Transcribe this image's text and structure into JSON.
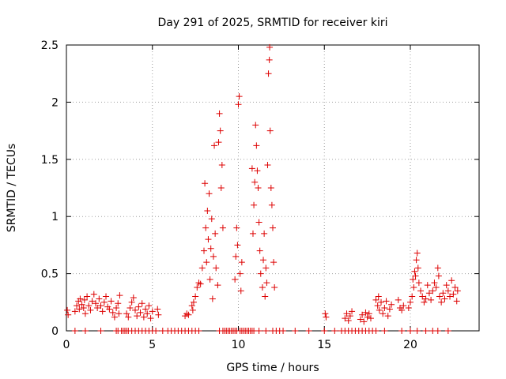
{
  "chart_data": {
    "type": "scatter",
    "title": "Day 291 of 2025, SRMTID for receiver kiri",
    "xlabel": "GPS time / hours",
    "ylabel": "SRMTID / TECUs",
    "xlim": [
      0,
      24
    ],
    "ylim": [
      0,
      2.5
    ],
    "xticks": [
      0,
      5,
      10,
      15,
      20
    ],
    "xtick_labels": [
      "0",
      "5",
      "10",
      "15",
      "20"
    ],
    "yticks": [
      0,
      0.5,
      1,
      1.5,
      2,
      2.5
    ],
    "ytick_labels": [
      "0",
      "0.5",
      "1",
      "1.5",
      "2",
      "2.5"
    ],
    "grid": true,
    "marker": "plus",
    "color": "#dd0000",
    "series": [
      {
        "name": "SRMTID",
        "points": [
          [
            0.05,
            0.18
          ],
          [
            0.1,
            0.14
          ],
          [
            0.5,
            0.17
          ],
          [
            0.6,
            0.22
          ],
          [
            0.7,
            0.26
          ],
          [
            0.75,
            0.19
          ],
          [
            0.8,
            0.28
          ],
          [
            0.9,
            0.23
          ],
          [
            1.0,
            0.2
          ],
          [
            1.05,
            0.27
          ],
          [
            1.1,
            0.15
          ],
          [
            1.2,
            0.3
          ],
          [
            1.3,
            0.22
          ],
          [
            1.4,
            0.18
          ],
          [
            1.5,
            0.26
          ],
          [
            1.6,
            0.32
          ],
          [
            1.7,
            0.24
          ],
          [
            1.8,
            0.2
          ],
          [
            1.9,
            0.28
          ],
          [
            2.0,
            0.22
          ],
          [
            2.1,
            0.17
          ],
          [
            2.2,
            0.25
          ],
          [
            2.3,
            0.3
          ],
          [
            2.4,
            0.21
          ],
          [
            2.5,
            0.19
          ],
          [
            2.6,
            0.26
          ],
          [
            2.7,
            0.16
          ],
          [
            2.8,
            0.12
          ],
          [
            2.9,
            0.2
          ],
          [
            3.0,
            0.24
          ],
          [
            3.05,
            0.15
          ],
          [
            3.1,
            0.31
          ],
          [
            3.5,
            0.15
          ],
          [
            3.6,
            0.12
          ],
          [
            3.7,
            0.2
          ],
          [
            3.8,
            0.25
          ],
          [
            3.9,
            0.29
          ],
          [
            4.0,
            0.18
          ],
          [
            4.1,
            0.13
          ],
          [
            4.2,
            0.21
          ],
          [
            4.3,
            0.16
          ],
          [
            4.4,
            0.24
          ],
          [
            4.5,
            0.12
          ],
          [
            4.6,
            0.19
          ],
          [
            4.7,
            0.15
          ],
          [
            4.8,
            0.22
          ],
          [
            4.9,
            0.11
          ],
          [
            5.0,
            0.17
          ],
          [
            5.3,
            0.19
          ],
          [
            5.35,
            0.14
          ],
          [
            6.9,
            0.13
          ],
          [
            7.0,
            0.15
          ],
          [
            7.1,
            0.14
          ],
          [
            7.3,
            0.22
          ],
          [
            7.35,
            0.18
          ],
          [
            7.4,
            0.25
          ],
          [
            7.5,
            0.3
          ],
          [
            7.6,
            0.38
          ],
          [
            7.7,
            0.42
          ],
          [
            7.8,
            0.41
          ],
          [
            7.9,
            0.55
          ],
          [
            8.0,
            0.7
          ],
          [
            8.05,
            1.29
          ],
          [
            8.1,
            0.9
          ],
          [
            8.15,
            0.6
          ],
          [
            8.2,
            1.05
          ],
          [
            8.25,
            0.8
          ],
          [
            8.3,
            1.2
          ],
          [
            8.35,
            0.45
          ],
          [
            8.4,
            0.72
          ],
          [
            8.45,
            0.98
          ],
          [
            8.5,
            0.28
          ],
          [
            8.55,
            0.65
          ],
          [
            8.6,
            1.62
          ],
          [
            8.65,
            0.85
          ],
          [
            8.7,
            0.55
          ],
          [
            8.8,
            0.4
          ],
          [
            8.85,
            1.65
          ],
          [
            8.9,
            1.9
          ],
          [
            8.95,
            1.75
          ],
          [
            9.0,
            1.25
          ],
          [
            9.05,
            1.45
          ],
          [
            9.1,
            0.9
          ],
          [
            9.8,
            0.45
          ],
          [
            9.85,
            0.65
          ],
          [
            9.9,
            0.9
          ],
          [
            9.95,
            0.75
          ],
          [
            10.0,
            1.98
          ],
          [
            10.05,
            2.05
          ],
          [
            10.1,
            0.5
          ],
          [
            10.15,
            0.35
          ],
          [
            10.2,
            0.6
          ],
          [
            10.8,
            1.42
          ],
          [
            10.85,
            0.85
          ],
          [
            10.9,
            1.1
          ],
          [
            10.95,
            1.3
          ],
          [
            11.0,
            1.8
          ],
          [
            11.05,
            1.62
          ],
          [
            11.1,
            1.4
          ],
          [
            11.15,
            1.25
          ],
          [
            11.2,
            0.95
          ],
          [
            11.25,
            0.7
          ],
          [
            11.3,
            0.5
          ],
          [
            11.4,
            0.38
          ],
          [
            11.45,
            0.62
          ],
          [
            11.5,
            0.85
          ],
          [
            11.55,
            0.3
          ],
          [
            11.6,
            0.55
          ],
          [
            11.65,
            0.42
          ],
          [
            11.7,
            1.45
          ],
          [
            11.75,
            2.25
          ],
          [
            11.8,
            2.37
          ],
          [
            11.82,
            2.48
          ],
          [
            11.85,
            1.75
          ],
          [
            11.9,
            1.25
          ],
          [
            11.95,
            1.1
          ],
          [
            12.0,
            0.9
          ],
          [
            12.05,
            0.6
          ],
          [
            12.1,
            0.38
          ],
          [
            15.05,
            0.15
          ],
          [
            15.1,
            0.12
          ],
          [
            16.2,
            0.11
          ],
          [
            16.3,
            0.15
          ],
          [
            16.4,
            0.09
          ],
          [
            16.5,
            0.13
          ],
          [
            16.6,
            0.17
          ],
          [
            17.1,
            0.1
          ],
          [
            17.2,
            0.14
          ],
          [
            17.3,
            0.08
          ],
          [
            17.4,
            0.16
          ],
          [
            17.5,
            0.12
          ],
          [
            17.6,
            0.15
          ],
          [
            17.7,
            0.11
          ],
          [
            18.0,
            0.27
          ],
          [
            18.1,
            0.22
          ],
          [
            18.15,
            0.3
          ],
          [
            18.2,
            0.18
          ],
          [
            18.3,
            0.25
          ],
          [
            18.4,
            0.15
          ],
          [
            18.5,
            0.2
          ],
          [
            18.6,
            0.26
          ],
          [
            18.7,
            0.13
          ],
          [
            18.8,
            0.19
          ],
          [
            18.9,
            0.23
          ],
          [
            19.3,
            0.27
          ],
          [
            19.4,
            0.2
          ],
          [
            19.5,
            0.18
          ],
          [
            19.6,
            0.22
          ],
          [
            19.9,
            0.2
          ],
          [
            20.0,
            0.25
          ],
          [
            20.1,
            0.3
          ],
          [
            20.15,
            0.45
          ],
          [
            20.2,
            0.38
          ],
          [
            20.25,
            0.52
          ],
          [
            20.3,
            0.48
          ],
          [
            20.35,
            0.62
          ],
          [
            20.4,
            0.68
          ],
          [
            20.45,
            0.55
          ],
          [
            20.5,
            0.42
          ],
          [
            20.6,
            0.35
          ],
          [
            20.7,
            0.3
          ],
          [
            20.8,
            0.25
          ],
          [
            20.9,
            0.28
          ],
          [
            21.0,
            0.4
          ],
          [
            21.1,
            0.33
          ],
          [
            21.2,
            0.27
          ],
          [
            21.3,
            0.35
          ],
          [
            21.4,
            0.42
          ],
          [
            21.5,
            0.38
          ],
          [
            21.6,
            0.55
          ],
          [
            21.65,
            0.48
          ],
          [
            21.7,
            0.3
          ],
          [
            21.8,
            0.25
          ],
          [
            21.9,
            0.33
          ],
          [
            22.0,
            0.28
          ],
          [
            22.1,
            0.4
          ],
          [
            22.2,
            0.35
          ],
          [
            22.3,
            0.3
          ],
          [
            22.4,
            0.44
          ],
          [
            22.5,
            0.32
          ],
          [
            22.6,
            0.38
          ],
          [
            22.7,
            0.26
          ],
          [
            22.75,
            0.35
          ]
        ],
        "baseline_hours": [
          0.5,
          1.1,
          2.0,
          2.9,
          3.0,
          3.2,
          3.3,
          3.4,
          3.5,
          3.6,
          3.8,
          4.0,
          4.2,
          4.4,
          4.6,
          4.8,
          5.0,
          5.2,
          5.6,
          5.9,
          6.1,
          6.3,
          6.5,
          6.7,
          6.9,
          7.1,
          7.3,
          7.5,
          7.7,
          8.9,
          9.1,
          9.2,
          9.3,
          9.4,
          9.5,
          9.6,
          9.7,
          9.8,
          9.9,
          10.1,
          10.2,
          10.3,
          10.4,
          10.5,
          10.6,
          10.7,
          10.8,
          10.9,
          11.2,
          11.6,
          12.0,
          12.2,
          12.4,
          12.6,
          13.3,
          14.1,
          15.0,
          15.6,
          16.0,
          16.2,
          16.4,
          16.6,
          16.8,
          17.0,
          17.2,
          17.4,
          17.6,
          17.8,
          18.0,
          18.5,
          19.5,
          20.0,
          20.4,
          20.9,
          21.3,
          21.6,
          22.2
        ]
      }
    ]
  }
}
